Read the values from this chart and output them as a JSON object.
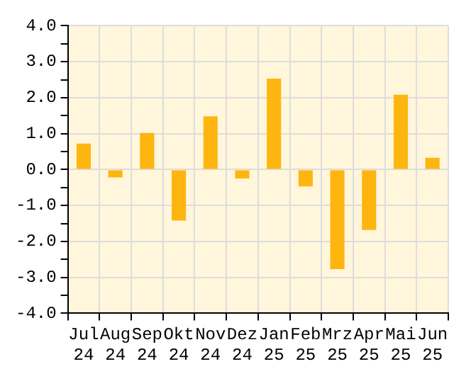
{
  "chart_data": {
    "type": "bar",
    "categories": [
      "Jul 24",
      "Aug 24",
      "Sep 24",
      "Okt 24",
      "Nov 24",
      "Dez 24",
      "Jan 25",
      "Feb 25",
      "Mrz 25",
      "Apr 25",
      "Mai 25",
      "Jun 25"
    ],
    "values": [
      0.72,
      -0.22,
      1.02,
      -1.42,
      1.48,
      -0.25,
      2.53,
      -0.47,
      -2.77,
      -1.68,
      2.08,
      0.33
    ],
    "color": "#ffb510",
    "ylim": [
      -4,
      4
    ],
    "yticks": [
      {
        "value": -4,
        "label": "-4.0"
      },
      {
        "value": -3.5,
        "label": null
      },
      {
        "value": -3,
        "label": "-3.0"
      },
      {
        "value": -2.5,
        "label": null
      },
      {
        "value": -2,
        "label": "-2.0"
      },
      {
        "value": -1.5,
        "label": null
      },
      {
        "value": -1,
        "label": "-1.0"
      },
      {
        "value": -0.5,
        "label": null
      },
      {
        "value": 0,
        "label": "0.0"
      },
      {
        "value": 0.5,
        "label": null
      },
      {
        "value": 1,
        "label": "1.0"
      },
      {
        "value": 1.5,
        "label": null
      },
      {
        "value": 2,
        "label": "2.0"
      },
      {
        "value": 2.5,
        "label": null
      },
      {
        "value": 3,
        "label": "3.0"
      },
      {
        "value": 3.5,
        "label": null
      },
      {
        "value": 4,
        "label": "4.0"
      }
    ],
    "grid": true,
    "legend": false
  }
}
